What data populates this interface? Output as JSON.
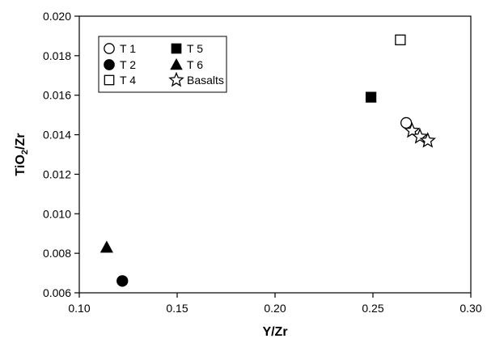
{
  "chart_data": {
    "type": "scatter",
    "title": "",
    "xlabel": "Y/Zr",
    "ylabel_parts": [
      "TiO",
      "2",
      "/Zr"
    ],
    "xlim": [
      0.1,
      0.3
    ],
    "ylim": [
      0.006,
      0.02
    ],
    "xticks": [
      "0.10",
      "0.15",
      "0.20",
      "0.25",
      "0.30"
    ],
    "yticks": [
      "0.006",
      "0.008",
      "0.010",
      "0.012",
      "0.014",
      "0.016",
      "0.018",
      "0.020"
    ],
    "grid": false,
    "legend_placement": "top-left",
    "series": [
      {
        "name": "T 1",
        "marker": "open-circle",
        "points": [
          [
            0.267,
            0.0146
          ]
        ]
      },
      {
        "name": "T 2",
        "marker": "filled-circle",
        "points": [
          [
            0.122,
            0.0066
          ]
        ]
      },
      {
        "name": "T 4",
        "marker": "open-square",
        "points": [
          [
            0.264,
            0.0188
          ]
        ]
      },
      {
        "name": "T 5",
        "marker": "filled-square",
        "points": [
          [
            0.249,
            0.0159
          ]
        ]
      },
      {
        "name": "T 6",
        "marker": "filled-triangle",
        "points": [
          [
            0.114,
            0.0083
          ]
        ]
      },
      {
        "name": "Basalts",
        "marker": "open-star",
        "points": [
          [
            0.27,
            0.0142
          ],
          [
            0.274,
            0.0139
          ],
          [
            0.278,
            0.0137
          ]
        ]
      }
    ]
  }
}
